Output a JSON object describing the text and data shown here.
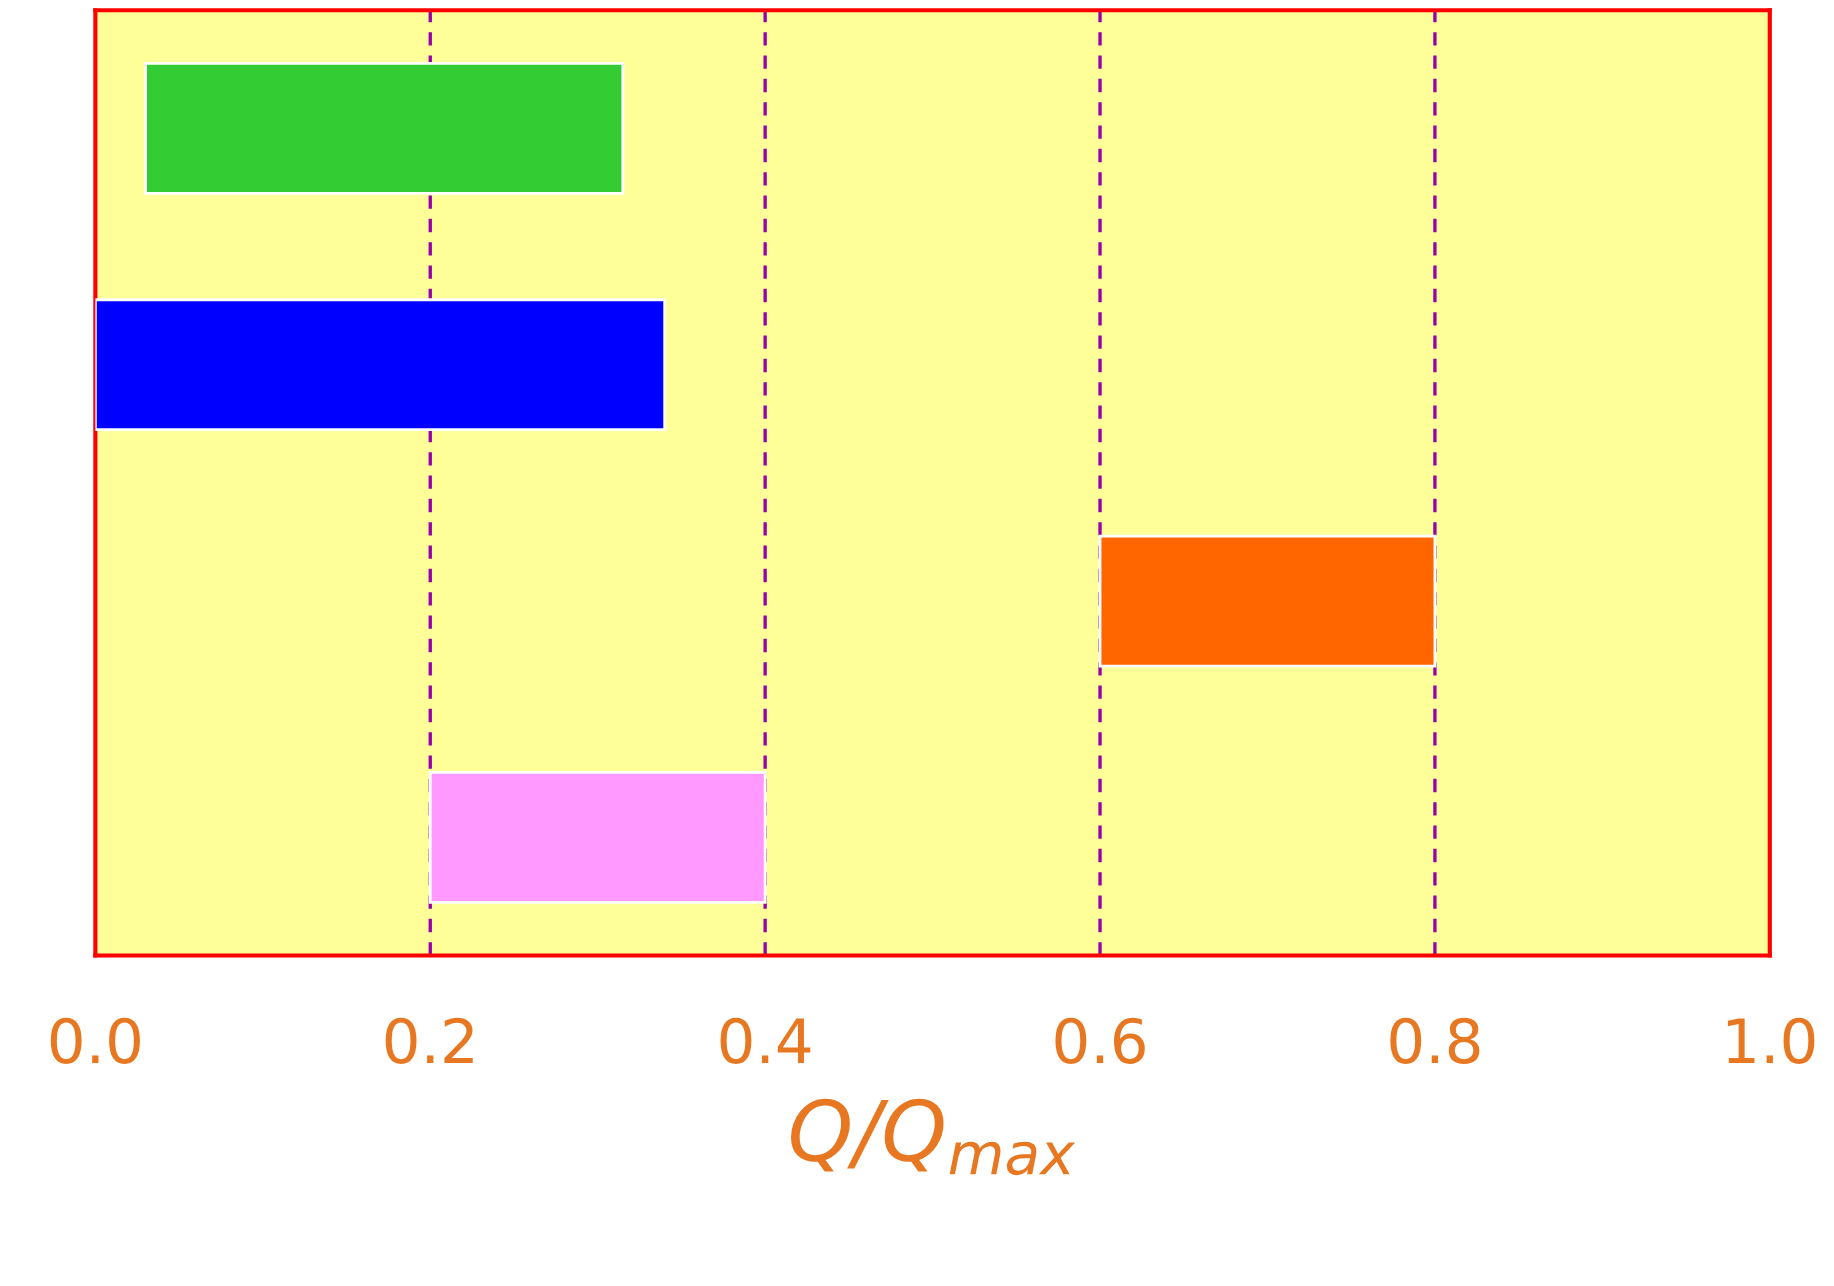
{
  "chart_data": {
    "type": "bar",
    "orientation": "horizontal",
    "xlabel": "Q/Q$_{max}$",
    "categories": [
      null,
      null,
      null,
      null
    ],
    "base": [
      0.03,
      0,
      0.6,
      0.2
    ],
    "values": [
      0.285,
      0.34,
      0.2,
      0.2
    ],
    "colors": [
      "#33cc33",
      "#0000ff",
      "#ff6600",
      "#ff99ff"
    ],
    "xlim": [
      0,
      1
    ],
    "xticks": [
      {
        "value": 0,
        "label": "0.0"
      },
      {
        "value": 0.2,
        "label": "0.2"
      },
      {
        "value": 0.4,
        "label": "0.4"
      },
      {
        "value": 0.6,
        "label": "0.6"
      },
      {
        "value": 0.8,
        "label": "0.8"
      },
      {
        "value": 1,
        "label": "1.0"
      }
    ],
    "grid": "x"
  }
}
